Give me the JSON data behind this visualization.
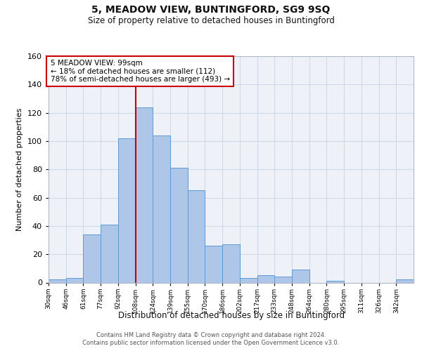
{
  "title_line1": "5, MEADOW VIEW, BUNTINGFORD, SG9 9SQ",
  "title_line2": "Size of property relative to detached houses in Buntingford",
  "xlabel": "Distribution of detached houses by size in Buntingford",
  "ylabel": "Number of detached properties",
  "bin_labels": [
    "30sqm",
    "46sqm",
    "61sqm",
    "77sqm",
    "92sqm",
    "108sqm",
    "124sqm",
    "139sqm",
    "155sqm",
    "170sqm",
    "186sqm",
    "202sqm",
    "217sqm",
    "233sqm",
    "248sqm",
    "264sqm",
    "280sqm",
    "295sqm",
    "311sqm",
    "326sqm",
    "342sqm"
  ],
  "bar_heights": [
    2,
    3,
    34,
    41,
    102,
    124,
    104,
    81,
    65,
    26,
    27,
    3,
    5,
    4,
    9,
    0,
    1,
    0,
    0,
    0,
    2
  ],
  "bar_color": "#aec6e8",
  "bar_edge_color": "#5b9bd5",
  "ylim": [
    0,
    160
  ],
  "yticks": [
    0,
    20,
    40,
    60,
    80,
    100,
    120,
    140,
    160
  ],
  "property_bar_index": 4,
  "annotation_text_line1": "5 MEADOW VIEW: 99sqm",
  "annotation_text_line2": "← 18% of detached houses are smaller (112)",
  "annotation_text_line3": "78% of semi-detached houses are larger (493) →",
  "annotation_box_color": "#ffffff",
  "annotation_box_edge_color": "#cc0000",
  "red_line_color": "#cc0000",
  "grid_color": "#d0d8e8",
  "background_color": "#eef2f8",
  "footnote_line1": "Contains HM Land Registry data © Crown copyright and database right 2024.",
  "footnote_line2": "Contains public sector information licensed under the Open Government Licence v3.0."
}
